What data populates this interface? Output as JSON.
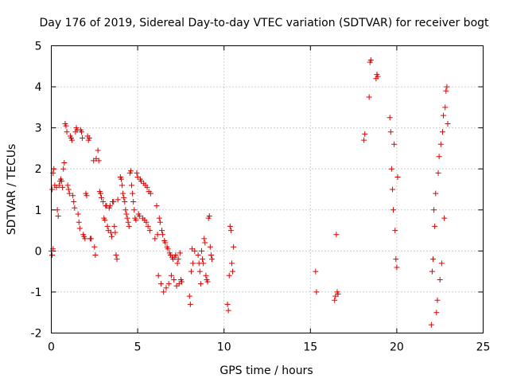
{
  "chart_data": {
    "type": "scatter",
    "title": "Day 176 of 2019, Sidereal Day-to-day VTEC variation (SDTVAR) for receiver bogt",
    "xlabel": "GPS time / hours",
    "ylabel": "SDTVAR / TECUs",
    "xlim": [
      0,
      25
    ],
    "ylim": [
      -2,
      5
    ],
    "x_ticks": [
      0,
      5,
      10,
      15,
      20,
      25
    ],
    "y_ticks": [
      -2,
      -1,
      0,
      1,
      2,
      3,
      4,
      5
    ],
    "grid": true,
    "marker": "+",
    "color": "#e00000",
    "series": [
      {
        "name": "SDTVAR",
        "points": [
          [
            0.0,
            0.0
          ],
          [
            0.05,
            -0.1
          ],
          [
            0.1,
            0.05
          ],
          [
            0.05,
            1.5
          ],
          [
            0.1,
            1.9
          ],
          [
            0.15,
            2.0
          ],
          [
            0.2,
            1.6
          ],
          [
            0.3,
            1.55
          ],
          [
            0.35,
            1.0
          ],
          [
            0.4,
            0.85
          ],
          [
            0.45,
            1.6
          ],
          [
            0.5,
            1.7
          ],
          [
            0.55,
            1.75
          ],
          [
            0.6,
            1.7
          ],
          [
            0.65,
            1.55
          ],
          [
            0.7,
            2.0
          ],
          [
            0.75,
            2.15
          ],
          [
            0.8,
            3.1
          ],
          [
            0.85,
            3.05
          ],
          [
            0.9,
            2.9
          ],
          [
            0.95,
            1.6
          ],
          [
            1.0,
            1.5
          ],
          [
            1.05,
            1.4
          ],
          [
            1.1,
            2.8
          ],
          [
            1.15,
            2.75
          ],
          [
            1.2,
            2.7
          ],
          [
            1.25,
            1.35
          ],
          [
            1.3,
            1.2
          ],
          [
            1.35,
            1.05
          ],
          [
            1.4,
            2.9
          ],
          [
            1.45,
            3.0
          ],
          [
            1.5,
            2.95
          ],
          [
            1.55,
            0.9
          ],
          [
            1.6,
            0.7
          ],
          [
            1.65,
            0.55
          ],
          [
            1.7,
            2.95
          ],
          [
            1.75,
            2.9
          ],
          [
            1.8,
            2.75
          ],
          [
            1.85,
            0.4
          ],
          [
            1.9,
            0.35
          ],
          [
            1.95,
            0.3
          ],
          [
            2.0,
            1.4
          ],
          [
            2.05,
            1.35
          ],
          [
            2.1,
            2.8
          ],
          [
            2.15,
            2.7
          ],
          [
            2.2,
            2.75
          ],
          [
            2.25,
            0.3
          ],
          [
            2.3,
            0.3
          ],
          [
            2.45,
            2.2
          ],
          [
            2.5,
            0.1
          ],
          [
            2.55,
            -0.1
          ],
          [
            2.6,
            2.25
          ],
          [
            2.7,
            2.45
          ],
          [
            2.75,
            2.2
          ],
          [
            2.8,
            1.45
          ],
          [
            2.85,
            1.4
          ],
          [
            2.9,
            1.3
          ],
          [
            3.0,
            1.2
          ],
          [
            3.05,
            0.8
          ],
          [
            3.1,
            0.75
          ],
          [
            3.15,
            1.1
          ],
          [
            3.2,
            1.1
          ],
          [
            3.25,
            0.6
          ],
          [
            3.3,
            0.5
          ],
          [
            3.35,
            1.05
          ],
          [
            3.4,
            1.1
          ],
          [
            3.45,
            0.45
          ],
          [
            3.5,
            0.35
          ],
          [
            3.55,
            1.2
          ],
          [
            3.6,
            1.2
          ],
          [
            3.65,
            0.6
          ],
          [
            3.7,
            0.45
          ],
          [
            3.75,
            -0.1
          ],
          [
            3.8,
            -0.2
          ],
          [
            3.85,
            1.25
          ],
          [
            4.0,
            1.8
          ],
          [
            4.05,
            1.75
          ],
          [
            4.1,
            1.6
          ],
          [
            4.15,
            1.4
          ],
          [
            4.2,
            1.3
          ],
          [
            4.25,
            1.2
          ],
          [
            4.3,
            1.0
          ],
          [
            4.35,
            0.9
          ],
          [
            4.4,
            0.8
          ],
          [
            4.45,
            0.7
          ],
          [
            4.5,
            0.6
          ],
          [
            4.55,
            1.9
          ],
          [
            4.6,
            1.95
          ],
          [
            4.65,
            1.6
          ],
          [
            4.7,
            1.4
          ],
          [
            4.75,
            1.2
          ],
          [
            4.8,
            1.0
          ],
          [
            4.85,
            0.8
          ],
          [
            4.9,
            0.75
          ],
          [
            4.95,
            1.9
          ],
          [
            5.0,
            1.8
          ],
          [
            5.05,
            0.9
          ],
          [
            5.1,
            0.85
          ],
          [
            5.15,
            1.75
          ],
          [
            5.2,
            1.7
          ],
          [
            5.3,
            0.8
          ],
          [
            5.35,
            1.65
          ],
          [
            5.4,
            0.75
          ],
          [
            5.45,
            1.6
          ],
          [
            5.5,
            0.7
          ],
          [
            5.55,
            1.55
          ],
          [
            5.6,
            0.6
          ],
          [
            5.65,
            1.45
          ],
          [
            5.7,
            0.5
          ],
          [
            5.75,
            1.4
          ],
          [
            6.0,
            0.3
          ],
          [
            6.1,
            1.1
          ],
          [
            6.15,
            0.4
          ],
          [
            6.2,
            -0.6
          ],
          [
            6.25,
            0.8
          ],
          [
            6.3,
            0.7
          ],
          [
            6.35,
            -0.8
          ],
          [
            6.4,
            0.5
          ],
          [
            6.45,
            0.4
          ],
          [
            6.5,
            -1.0
          ],
          [
            6.55,
            0.25
          ],
          [
            6.6,
            0.2
          ],
          [
            6.65,
            -0.9
          ],
          [
            6.7,
            0.1
          ],
          [
            6.75,
            0.05
          ],
          [
            6.8,
            -0.8
          ],
          [
            6.85,
            -0.05
          ],
          [
            6.9,
            -0.1
          ],
          [
            6.95,
            -0.6
          ],
          [
            7.0,
            -0.15
          ],
          [
            7.05,
            -0.2
          ],
          [
            7.1,
            -0.7
          ],
          [
            7.15,
            -0.15
          ],
          [
            7.2,
            -0.1
          ],
          [
            7.25,
            -0.85
          ],
          [
            7.3,
            -0.3
          ],
          [
            7.35,
            -0.2
          ],
          [
            7.4,
            -0.8
          ],
          [
            7.45,
            -0.05
          ],
          [
            7.5,
            -0.7
          ],
          [
            7.55,
            -0.75
          ],
          [
            8.0,
            -1.1
          ],
          [
            8.05,
            -1.3
          ],
          [
            8.1,
            -0.5
          ],
          [
            8.15,
            0.05
          ],
          [
            8.2,
            -0.3
          ],
          [
            8.3,
            0.0
          ],
          [
            8.5,
            -0.1
          ],
          [
            8.55,
            -0.3
          ],
          [
            8.6,
            -0.5
          ],
          [
            8.65,
            -0.8
          ],
          [
            8.7,
            0.0
          ],
          [
            8.75,
            -0.2
          ],
          [
            8.8,
            -0.3
          ],
          [
            8.85,
            0.3
          ],
          [
            8.9,
            0.2
          ],
          [
            8.95,
            -0.6
          ],
          [
            9.0,
            -0.7
          ],
          [
            9.05,
            -0.75
          ],
          [
            9.1,
            0.8
          ],
          [
            9.15,
            0.85
          ],
          [
            9.2,
            0.1
          ],
          [
            9.25,
            -0.1
          ],
          [
            9.3,
            -0.2
          ],
          [
            10.2,
            -1.3
          ],
          [
            10.25,
            -1.45
          ],
          [
            10.3,
            -0.6
          ],
          [
            10.35,
            0.6
          ],
          [
            10.4,
            0.5
          ],
          [
            10.45,
            -0.3
          ],
          [
            10.5,
            -0.5
          ],
          [
            10.55,
            0.1
          ],
          [
            15.3,
            -0.5
          ],
          [
            15.35,
            -1.0
          ],
          [
            16.4,
            -1.2
          ],
          [
            16.45,
            -1.1
          ],
          [
            16.5,
            0.4
          ],
          [
            16.55,
            -1.0
          ],
          [
            16.6,
            -1.05
          ],
          [
            18.1,
            2.7
          ],
          [
            18.15,
            2.85
          ],
          [
            18.4,
            3.75
          ],
          [
            18.45,
            4.6
          ],
          [
            18.5,
            4.65
          ],
          [
            18.8,
            4.2
          ],
          [
            18.85,
            4.3
          ],
          [
            18.9,
            4.25
          ],
          [
            19.6,
            3.25
          ],
          [
            19.65,
            2.9
          ],
          [
            19.7,
            2.0
          ],
          [
            19.75,
            1.5
          ],
          [
            19.8,
            1.0
          ],
          [
            19.85,
            2.6
          ],
          [
            19.9,
            0.5
          ],
          [
            19.95,
            -0.2
          ],
          [
            20.0,
            -0.4
          ],
          [
            20.05,
            1.8
          ],
          [
            22.0,
            -1.8
          ],
          [
            22.05,
            -0.5
          ],
          [
            22.1,
            -0.2
          ],
          [
            22.15,
            1.0
          ],
          [
            22.2,
            0.6
          ],
          [
            22.25,
            1.4
          ],
          [
            22.3,
            -1.5
          ],
          [
            22.35,
            -1.2
          ],
          [
            22.4,
            1.9
          ],
          [
            22.45,
            2.3
          ],
          [
            22.5,
            -0.7
          ],
          [
            22.55,
            2.6
          ],
          [
            22.6,
            -0.3
          ],
          [
            22.65,
            2.9
          ],
          [
            22.7,
            3.3
          ],
          [
            22.75,
            0.8
          ],
          [
            22.8,
            3.5
          ],
          [
            22.85,
            3.9
          ],
          [
            22.9,
            4.0
          ],
          [
            22.95,
            3.1
          ]
        ]
      }
    ]
  }
}
